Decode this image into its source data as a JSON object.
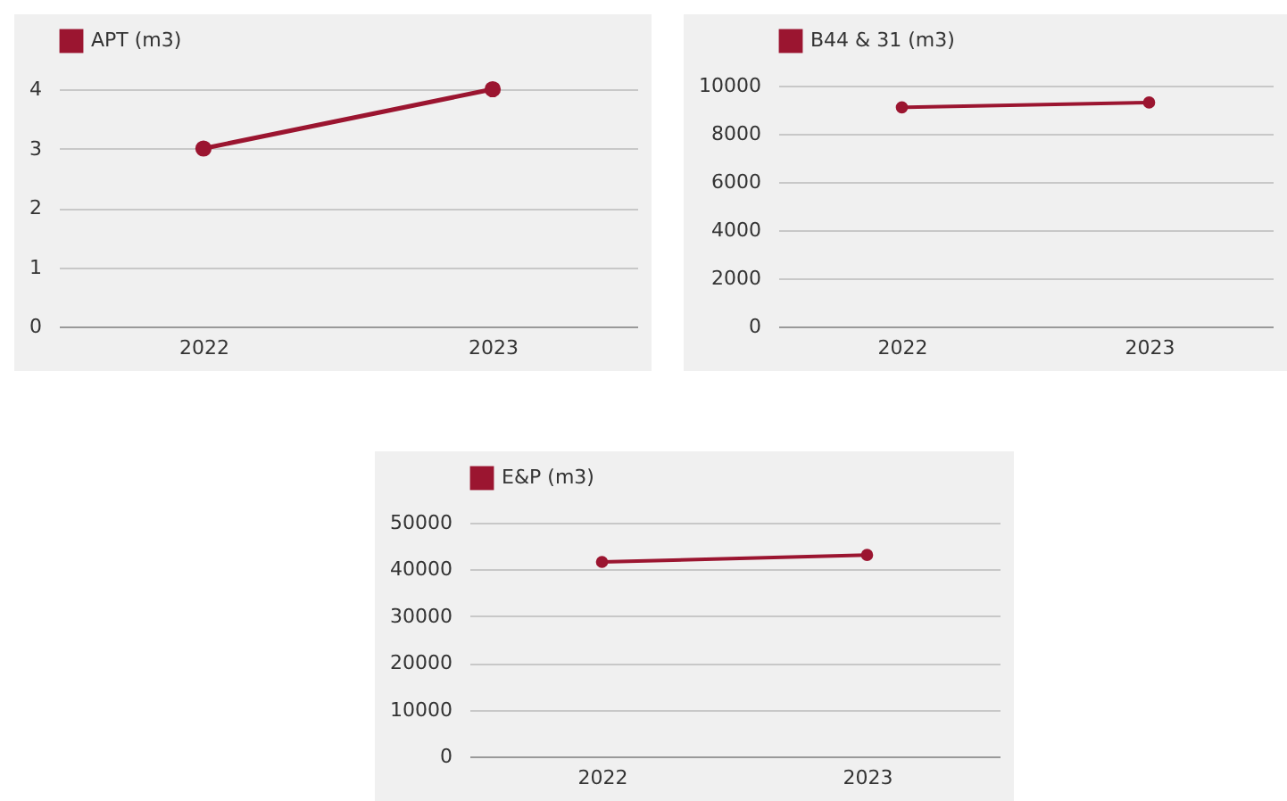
{
  "chart_data": [
    {
      "type": "line",
      "categories": [
        "2022",
        "2023"
      ],
      "series": [
        {
          "name": "APT (m3)",
          "color": "#9b1530",
          "values": [
            3,
            4
          ]
        }
      ],
      "ylim": [
        0,
        4
      ],
      "yticks": [
        0,
        1,
        2,
        3,
        4
      ],
      "grid": "y",
      "legend": "top",
      "marker": "circle"
    },
    {
      "type": "line",
      "categories": [
        "2022",
        "2023"
      ],
      "series": [
        {
          "name": "B44 & 31 (m3)",
          "color": "#9b1530",
          "values": [
            9100,
            9300
          ]
        }
      ],
      "ylim": [
        0,
        10000
      ],
      "yticks": [
        0,
        2000,
        4000,
        6000,
        8000,
        10000
      ],
      "grid": "y",
      "legend": "top",
      "marker": "circle"
    },
    {
      "type": "line",
      "categories": [
        "2022",
        "2023"
      ],
      "series": [
        {
          "name": "E&P (m3)",
          "color": "#9b1530",
          "values": [
            41600,
            43100
          ]
        }
      ],
      "ylim": [
        0,
        50000
      ],
      "yticks": [
        0,
        10000,
        20000,
        30000,
        40000,
        50000
      ],
      "grid": "y",
      "legend": "top",
      "marker": "circle"
    }
  ]
}
